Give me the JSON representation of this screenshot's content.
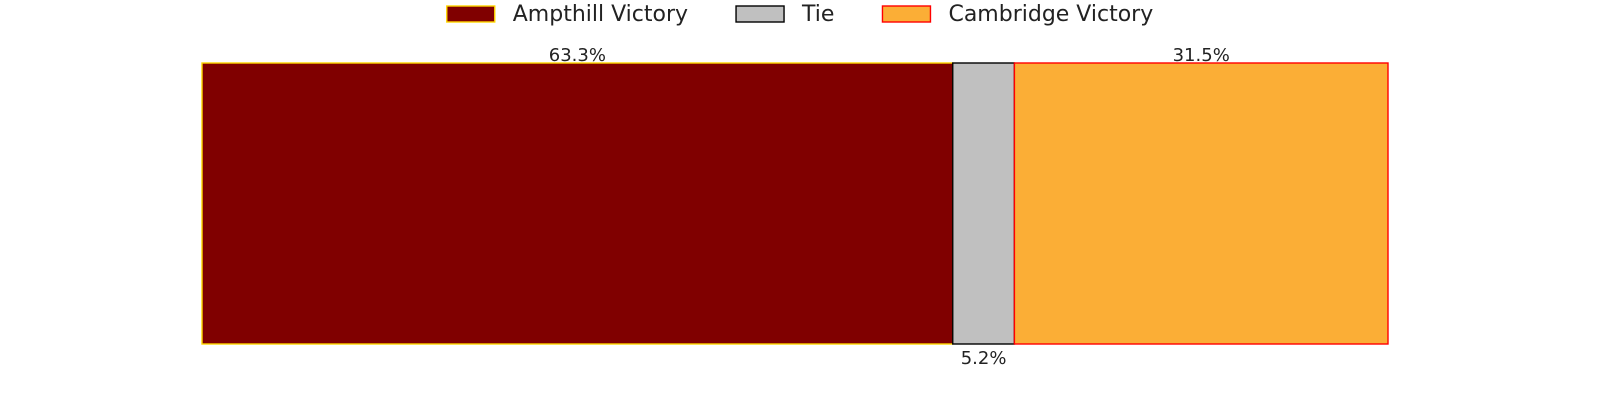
{
  "chart_data": {
    "type": "bar",
    "orientation": "horizontal",
    "stacked": true,
    "normalized": true,
    "xlim": [
      0,
      100
    ],
    "grid": false,
    "legend_position": "top-center",
    "title": "",
    "xlabel": "",
    "ylabel": "",
    "series": [
      {
        "name": "Ampthill Victory",
        "value": 63.3,
        "label": "63.3%",
        "fill": "#800000",
        "stroke": "#FFD700",
        "label_position": "above"
      },
      {
        "name": "Tie",
        "value": 5.2,
        "label": "5.2%",
        "fill": "#C0C0C0",
        "stroke": "#000000",
        "label_position": "below"
      },
      {
        "name": "Cambridge Victory",
        "value": 31.5,
        "label": "31.5%",
        "fill": "#FBAE36",
        "stroke": "#FF0000",
        "label_position": "above"
      }
    ]
  }
}
